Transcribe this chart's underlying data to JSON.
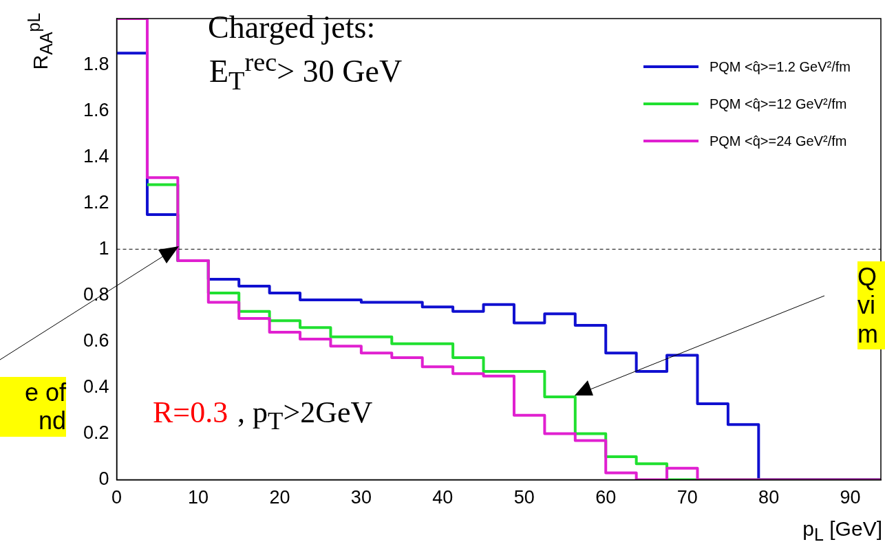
{
  "chart_data": {
    "type": "histogram",
    "xlabel": "p$_{L}$ [GeV]",
    "ylabel": "R$_{AA}$$^{pL}$",
    "bins": [
      0,
      3.75,
      7.5,
      11.25,
      15,
      18.75,
      22.5,
      26.25,
      30,
      33.75,
      37.5,
      41.25,
      45,
      48.75,
      52.5,
      56.25,
      60,
      63.75,
      67.5,
      71.25,
      75,
      78.75,
      82.5,
      86.25,
      90,
      93.75
    ],
    "series": [
      {
        "name": "PQM <q̂>=1.2 GeV²/fm",
        "color": "#1010d0",
        "values": [
          1.85,
          1.15,
          0.95,
          0.87,
          0.84,
          0.81,
          0.78,
          0.78,
          0.77,
          0.77,
          0.75,
          0.73,
          0.76,
          0.68,
          0.72,
          0.67,
          0.55,
          0.47,
          0.54,
          0.33,
          0.24,
          0,
          0,
          0,
          0
        ]
      },
      {
        "name": "PQM <q̂>=12 GeV²/fm",
        "color": "#20e030",
        "bins": [
          3.75,
          7.5,
          11.25,
          15,
          18.75,
          22.5,
          26.25,
          30,
          33.75,
          37.5,
          41.25,
          45,
          48.75,
          52.5,
          56.25,
          60,
          63.75,
          67.5,
          71.25,
          75,
          78.75,
          82.5,
          86.25,
          90,
          93.75
        ],
        "values": [
          1.28,
          0.95,
          0.81,
          0.73,
          0.69,
          0.66,
          0.62,
          0.62,
          0.59,
          0.59,
          0.53,
          0.47,
          0.47,
          0.36,
          0.2,
          0.1,
          0.07,
          0,
          0,
          0,
          0,
          0,
          0,
          0
        ]
      },
      {
        "name": "PQM <q̂>=24 GeV²/fm",
        "color": "#e020d0",
        "values": [
          2,
          1.31,
          0.95,
          0.77,
          0.7,
          0.64,
          0.61,
          0.58,
          0.55,
          0.53,
          0.49,
          0.46,
          0.45,
          0.28,
          0.2,
          0.17,
          0.03,
          0,
          0.05,
          0,
          0,
          0,
          0,
          0,
          0
        ]
      }
    ],
    "xlim": [
      0,
      93.75
    ],
    "xticks": [
      0,
      10,
      20,
      30,
      40,
      50,
      60,
      70,
      80,
      90
    ],
    "ylim": [
      0,
      2
    ],
    "yticks": [
      0,
      0.2,
      0.4,
      0.6,
      0.8,
      1,
      1.2,
      1.4,
      1.6,
      1.8
    ],
    "ref_lines": [
      {
        "axis": "y",
        "value": 1,
        "color": "#000000",
        "line_style": "dashed"
      }
    ],
    "legend": "top right",
    "grid": false,
    "annotations": [
      "Charged jets:",
      "E$_{T}$$^{rec}$> 30 GeV",
      "R=0.3",
      ", p$_{T}$>2GeV",
      "e of\nnd",
      "Q\nvi\nm"
    ]
  }
}
